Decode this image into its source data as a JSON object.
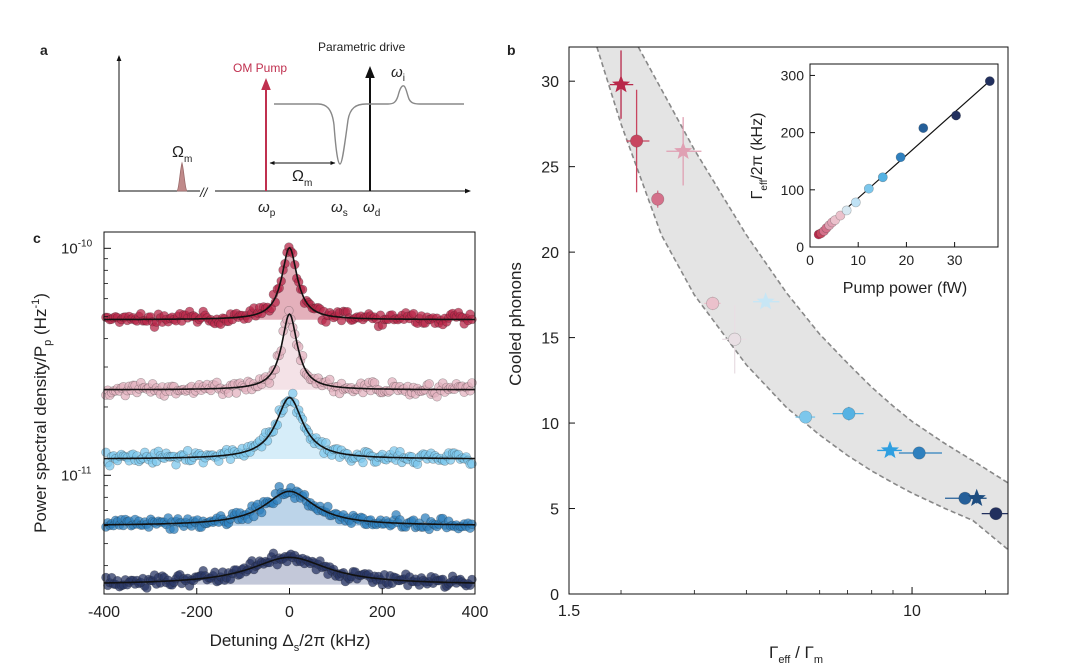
{
  "panels": {
    "a": {
      "label": "a"
    },
    "b": {
      "label": "b"
    },
    "c": {
      "label": "c"
    }
  },
  "chart_data": [
    {
      "id": "a",
      "type": "diagram",
      "labels": {
        "om_pump": "OM Pump",
        "parametric_drive": "Parametric drive",
        "omega_i": "ω",
        "omega_i_sub": "i",
        "big_omega_m_left": "Ω",
        "big_omega_m_left_sub": "m",
        "big_omega_m_mid": "Ω",
        "big_omega_m_mid_sub": "m",
        "omega_p": "ω",
        "omega_p_sub": "p",
        "omega_s": "ω",
        "omega_s_sub": "s",
        "omega_d": "ω",
        "omega_d_sub": "d",
        "axis_break": "//"
      },
      "colors": {
        "pump": "#c0304f",
        "drive": "#111111",
        "response": "#888888",
        "mech": "#c08a8a"
      }
    },
    {
      "id": "b",
      "type": "scatter",
      "xlabel": "Γ",
      "xlabel_sub1": "eff",
      "xlabel_mid": " / Γ",
      "xlabel_sub2": "m",
      "ylabel": "Cooled phonons",
      "xscale": "log",
      "xlim": [
        1.5,
        17
      ],
      "ylim": [
        0,
        32
      ],
      "xticks": [
        {
          "v": 1.5,
          "label": "1.5"
        },
        {
          "v": 10,
          "label": "10"
        }
      ],
      "yticks": [
        0,
        5,
        10,
        15,
        20,
        25,
        30
      ],
      "band": {
        "upper": [
          [
            2.2,
            32
          ],
          [
            3.0,
            26
          ],
          [
            4.0,
            21
          ],
          [
            5.0,
            17.6
          ],
          [
            6.0,
            15.2
          ],
          [
            7.0,
            13.5
          ],
          [
            8.0,
            12.1
          ],
          [
            9.0,
            11.0
          ],
          [
            10.0,
            10.1
          ],
          [
            12.0,
            8.8
          ],
          [
            14.0,
            7.8
          ],
          [
            17.0,
            6.5
          ]
        ],
        "lower": [
          [
            1.75,
            32
          ],
          [
            2.0,
            27.5
          ],
          [
            2.5,
            21
          ],
          [
            3.0,
            17.5
          ],
          [
            4.0,
            13.4
          ],
          [
            5.0,
            10.9
          ],
          [
            6.0,
            9.3
          ],
          [
            7.0,
            8.1
          ],
          [
            8.0,
            7.2
          ],
          [
            9.0,
            6.5
          ],
          [
            10.0,
            5.9
          ],
          [
            12.0,
            5.0
          ],
          [
            14.0,
            4.3
          ],
          [
            17.0,
            2.6
          ]
        ]
      },
      "points": [
        {
          "x": 2.0,
          "y": 29.8,
          "xerr": [
            0.12,
            0.14
          ],
          "yerr": 2.0,
          "marker": "star",
          "color": "#b8284a"
        },
        {
          "x": 2.18,
          "y": 26.5,
          "xerr": [
            0.12,
            0.16
          ],
          "yerr": 3.0,
          "marker": "circle",
          "color": "#c8455f"
        },
        {
          "x": 2.45,
          "y": 23.1,
          "xerr": [
            0.06,
            0.06
          ],
          "yerr": 0.5,
          "marker": "circle",
          "color": "#d4708a"
        },
        {
          "x": 2.82,
          "y": 25.9,
          "xerr": [
            0.25,
            0.3
          ],
          "yerr": 2.0,
          "marker": "star",
          "color": "#e0a0b3"
        },
        {
          "x": 3.32,
          "y": 17.0,
          "xerr": [
            0.15,
            0.15
          ],
          "yerr": 0.4,
          "marker": "circle",
          "color": "#ebc1cc"
        },
        {
          "x": 3.75,
          "y": 14.9,
          "xerr": [
            0.25,
            0.25
          ],
          "yerr": 2.0,
          "marker": "circle",
          "color": "#e9dfe4"
        },
        {
          "x": 4.45,
          "y": 17.1,
          "xerr": [
            0.3,
            0.35
          ],
          "yerr": 0.3,
          "marker": "star",
          "color": "#c7e6f5"
        },
        {
          "x": 5.55,
          "y": 10.35,
          "xerr": [
            0.3,
            0.3
          ],
          "yerr": 0.3,
          "marker": "circle",
          "color": "#7cc7ec"
        },
        {
          "x": 7.05,
          "y": 10.55,
          "xerr": [
            0.6,
            0.6
          ],
          "yerr": 0.4,
          "marker": "circle",
          "color": "#55b2e3"
        },
        {
          "x": 8.85,
          "y": 8.4,
          "xerr": [
            0.6,
            0.6
          ],
          "yerr": 0.3,
          "marker": "star",
          "color": "#2f9fe0"
        },
        {
          "x": 10.4,
          "y": 8.25,
          "xerr": [
            1.1,
            1.4
          ],
          "yerr": 0.3,
          "marker": "circle",
          "color": "#2f80be"
        },
        {
          "x": 13.4,
          "y": 5.6,
          "xerr": [
            1.4,
            0.6
          ],
          "yerr": 0.3,
          "marker": "circle",
          "color": "#255f99"
        },
        {
          "x": 14.3,
          "y": 5.6,
          "xerr": [
            0.5,
            0.8
          ],
          "yerr": 0.3,
          "marker": "star",
          "color": "#1d4d80"
        },
        {
          "x": 15.9,
          "y": 4.7,
          "xerr": [
            1.2,
            1.4
          ],
          "yerr": 0.3,
          "marker": "circle",
          "color": "#22305e"
        }
      ],
      "inset": {
        "xlabel": "Pump power (fW)",
        "ylabel": "Γ",
        "ylabel_sub": "eff",
        "ylabel_rest": "/2π (kHz)",
        "xlim": [
          0,
          39
        ],
        "ylim": [
          0,
          320
        ],
        "xticks": [
          0,
          10,
          20,
          30
        ],
        "yticks": [
          0,
          100,
          200,
          300
        ],
        "fit": [
          [
            1.0,
            18
          ],
          [
            37.5,
            292
          ]
        ],
        "points": [
          {
            "x": 1.8,
            "y": 22,
            "color": "#b8284a"
          },
          {
            "x": 2.3,
            "y": 24,
            "color": "#c8455f"
          },
          {
            "x": 2.9,
            "y": 28,
            "color": "#d4708a"
          },
          {
            "x": 3.4,
            "y": 33,
            "color": "#d4708a"
          },
          {
            "x": 4.0,
            "y": 38,
            "color": "#e0a0b3"
          },
          {
            "x": 4.6,
            "y": 43,
            "color": "#e0a0b3"
          },
          {
            "x": 5.2,
            "y": 47,
            "color": "#ebc1cc"
          },
          {
            "x": 6.3,
            "y": 55,
            "color": "#ebc1cc"
          },
          {
            "x": 7.6,
            "y": 64,
            "color": "#d6e8f2"
          },
          {
            "x": 9.5,
            "y": 78,
            "color": "#bfe2f5"
          },
          {
            "x": 12.2,
            "y": 102,
            "color": "#7cc7ec"
          },
          {
            "x": 15.1,
            "y": 122,
            "color": "#55b2e3"
          },
          {
            "x": 18.8,
            "y": 157,
            "color": "#2f80be"
          },
          {
            "x": 23.5,
            "y": 208,
            "color": "#255f99"
          },
          {
            "x": 30.3,
            "y": 230,
            "color": "#22305e"
          },
          {
            "x": 37.3,
            "y": 290,
            "color": "#22305e"
          }
        ]
      }
    },
    {
      "id": "c",
      "type": "scatter",
      "xlabel": "Detuning Δ",
      "xlabel_sub": "s",
      "xlabel_rest": "/2π (kHz)",
      "ylabel": "Power spectral density/P",
      "ylabel_sub": "p",
      "ylabel_rest": " (Hz",
      "ylabel_sup": "-1",
      "ylabel_close": ")",
      "yscale": "log",
      "xlim": [
        -400,
        400
      ],
      "ylim": [
        3e-12,
        1.18e-10
      ],
      "xticks": [
        -400,
        -200,
        0,
        200,
        400
      ],
      "ytick_labels": [
        {
          "v": 1e-10,
          "base": "10",
          "exp": "-10"
        },
        {
          "v": 1e-11,
          "base": "10",
          "exp": "-11"
        }
      ],
      "series": [
        {
          "name": "trace1",
          "baseline": 4.85e-11,
          "peak": 5.2e-11,
          "gamma": 17,
          "color": "#b8284a",
          "fill": "#d98e9e"
        },
        {
          "name": "trace2",
          "baseline": 2.38e-11,
          "peak": 2.75e-11,
          "gamma": 17,
          "color": "#e3b2bf",
          "fill": "#f0d6dd"
        },
        {
          "name": "trace3",
          "baseline": 1.18e-11,
          "peak": 1.02e-11,
          "gamma": 30,
          "color": "#7cc7ec",
          "fill": "#c4e6f6"
        },
        {
          "name": "trace4",
          "baseline": 6e-12,
          "peak": 2.5e-12,
          "gamma": 60,
          "color": "#2f80be",
          "fill": "#9fc2e0"
        },
        {
          "name": "trace5",
          "baseline": 3.3e-12,
          "peak": 1.05e-12,
          "gamma": 95,
          "color": "#2a3766",
          "fill": "#a9b1c9"
        }
      ]
    }
  ]
}
